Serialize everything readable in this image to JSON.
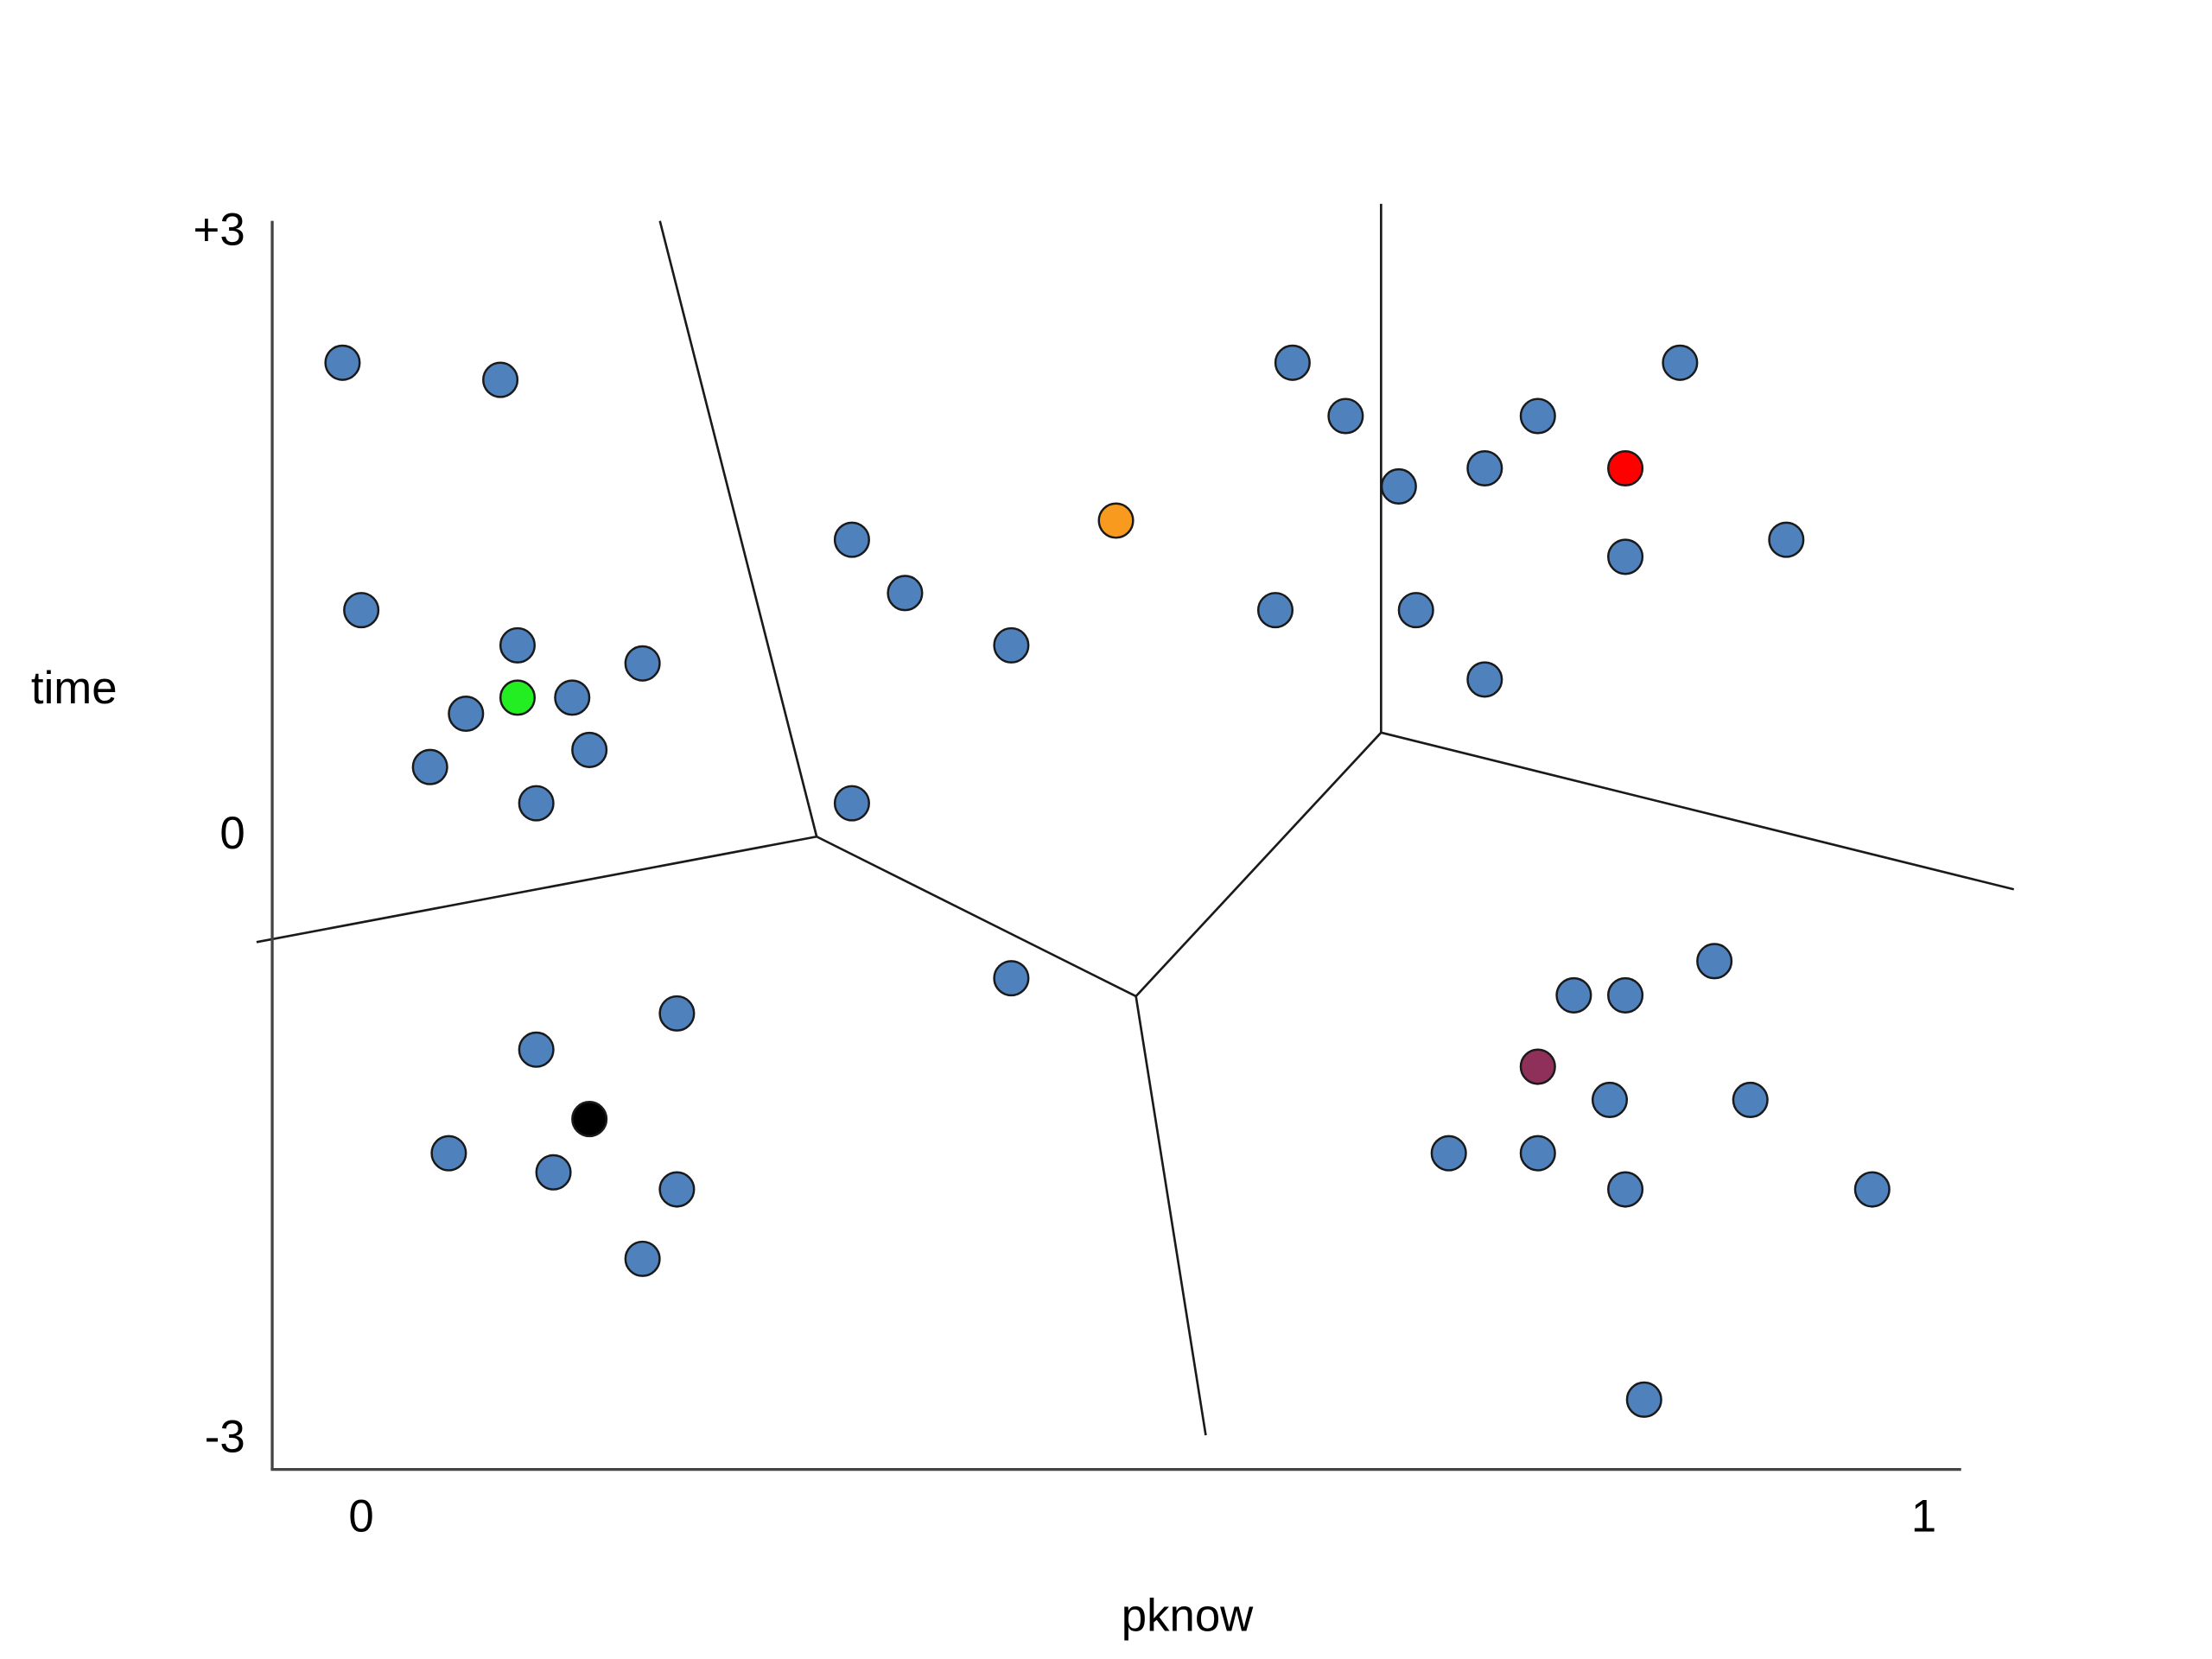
{
  "chart_data": {
    "type": "scatter",
    "x_label": "pknow",
    "y_label": "time",
    "xlim": [
      -0.057,
      1.023
    ],
    "ylim": [
      -3.14,
      3.06
    ],
    "xticks": [
      0,
      1
    ],
    "yticks": [
      {
        "value": 3,
        "label": "+3"
      },
      0,
      -3
    ],
    "grid": false,
    "series": [
      {
        "color": "#4f81bd",
        "x": [
          -0.012,
          0.089,
          0,
          0.1,
          0.18,
          0.135,
          0.067,
          0.146,
          0.044,
          0.112,
          0.314,
          0.348,
          0.416,
          0.314,
          0.596,
          0.63,
          0.664,
          0.585,
          0.675,
          0.719,
          0.753,
          0.844,
          0.809,
          0.912,
          0.719,
          0.416,
          0.202,
          0.112,
          0.056,
          0.123,
          0.202,
          0.18,
          0.866,
          0.776,
          0.809,
          0.799,
          0.889,
          0.696,
          0.753,
          0.809,
          0.967,
          0.821
        ],
        "y": [
          2.355,
          2.27,
          1.125,
          0.95,
          0.86,
          0.69,
          0.61,
          0.43,
          0.345,
          0.165,
          1.475,
          1.21,
          0.95,
          0.165,
          2.355,
          2.09,
          1.74,
          1.125,
          1.125,
          1.83,
          2.09,
          2.355,
          1.39,
          1.475,
          0.78,
          -0.705,
          -0.88,
          -1.06,
          -1.575,
          -1.67,
          -1.755,
          -2.1,
          -0.62,
          -0.79,
          -0.79,
          -1.31,
          -1.31,
          -1.575,
          -1.575,
          -1.755,
          -1.755,
          -2.8
        ]
      },
      {
        "color": "#22ee22",
        "x": [
          0.1
        ],
        "y": [
          0.69
        ]
      },
      {
        "color": "#f79a1e",
        "x": [
          0.483
        ],
        "y": [
          1.57
        ]
      },
      {
        "color": "#ff0000",
        "x": [
          0.809
        ],
        "y": [
          1.83
        ]
      },
      {
        "color": "#8e3059",
        "x": [
          0.753
        ],
        "y": [
          -1.145
        ]
      },
      {
        "color": "#000000",
        "x": [
          0.146
        ],
        "y": [
          -1.405
        ]
      }
    ]
  }
}
